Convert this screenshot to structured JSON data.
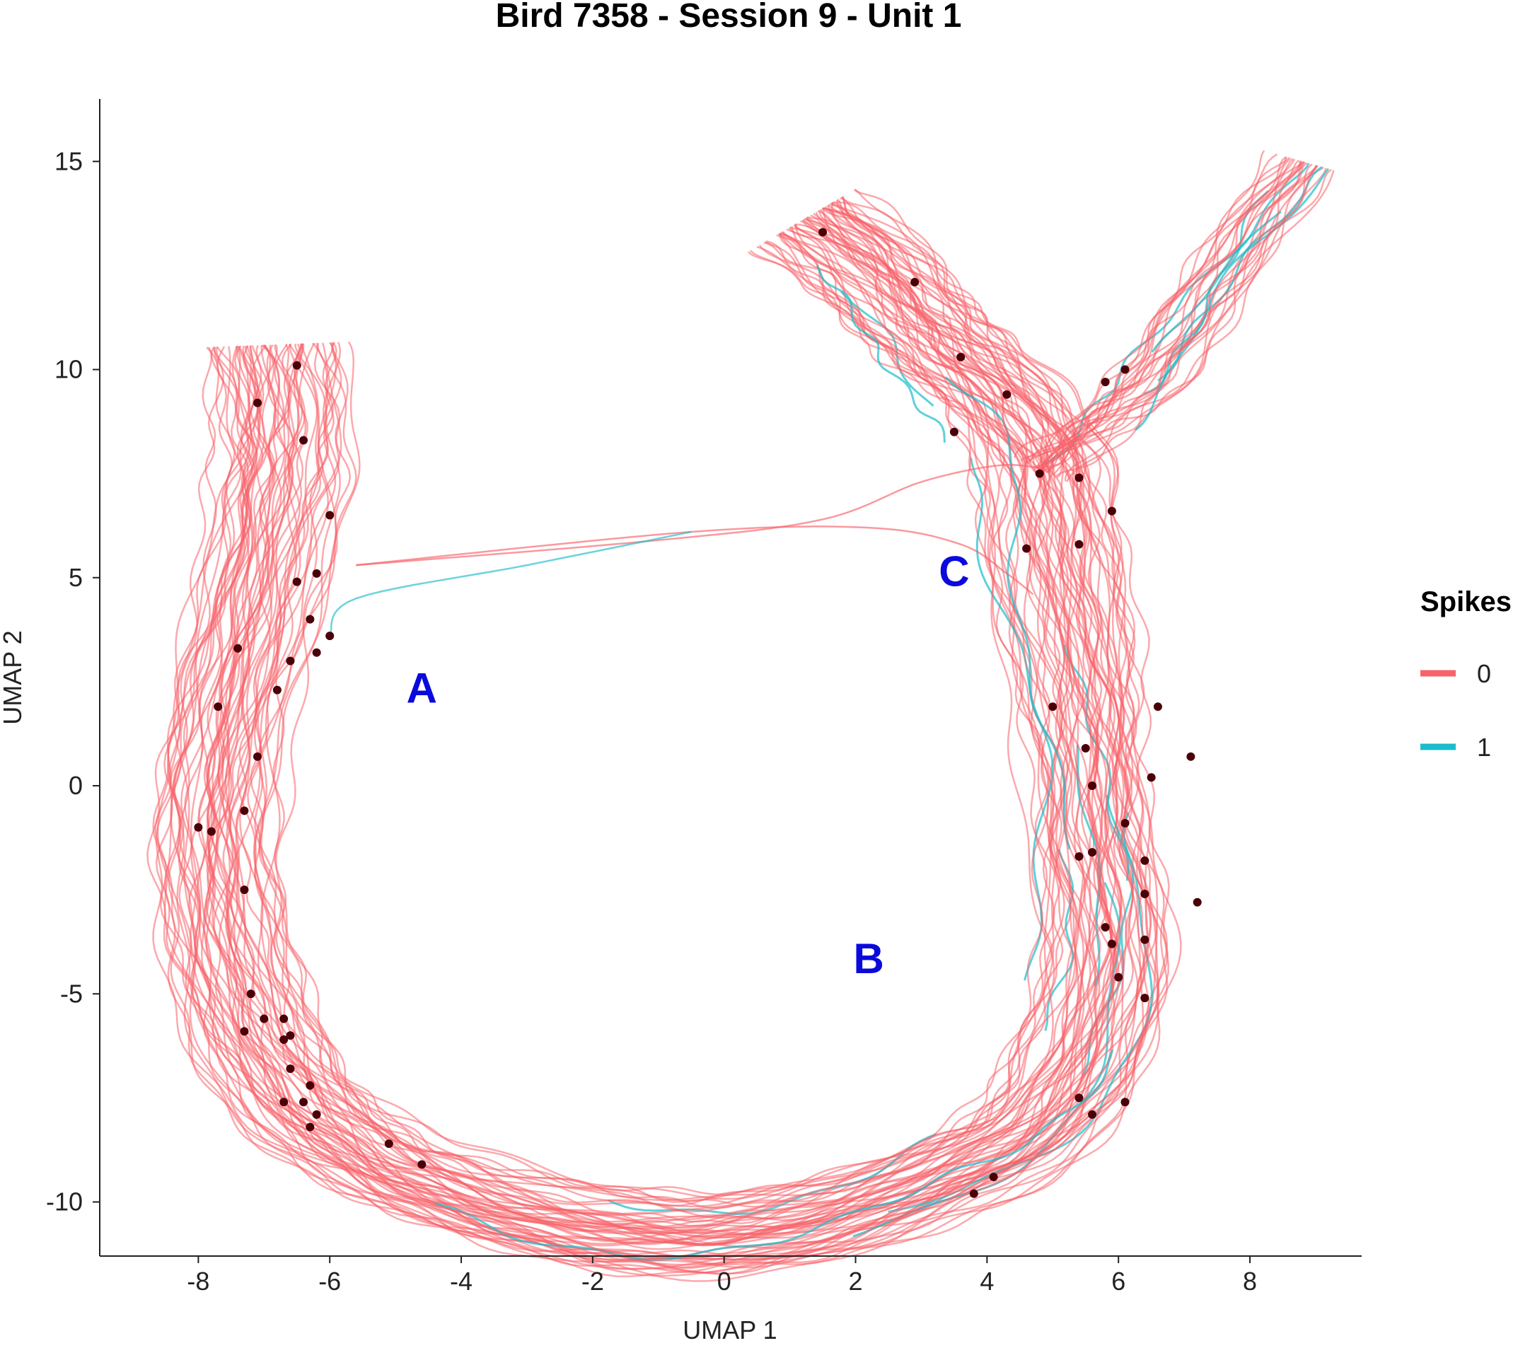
{
  "chart_data": {
    "type": "line",
    "title": "Bird 7358 - Session 9 - Unit 1",
    "xlabel": "UMAP 1",
    "ylabel": "UMAP 2",
    "xlim": [
      -9.5,
      9.7
    ],
    "ylim": [
      -11.3,
      16.5
    ],
    "xticks": [
      -8,
      -6,
      -4,
      -2,
      0,
      2,
      4,
      6,
      8
    ],
    "yticks": [
      15,
      10,
      5,
      0,
      -5,
      -10
    ],
    "grid": false,
    "legend": {
      "title": "Spikes",
      "position": "right",
      "entries": [
        {
          "label": "0",
          "color": "#F8636A"
        },
        {
          "label": "1",
          "color": "#1BBCCB"
        }
      ]
    },
    "annotations": [
      {
        "text": "A",
        "x": -4.6,
        "y": 2.0,
        "color": "#0A0ADC"
      },
      {
        "text": "B",
        "x": 2.2,
        "y": -4.5,
        "color": "#0A0ADC"
      },
      {
        "text": "C",
        "x": 3.5,
        "y": 4.8,
        "color": "#0A0ADC"
      }
    ],
    "trajectory_backbone": [
      [
        1.2,
        13.6
      ],
      [
        2.1,
        12.6
      ],
      [
        2.8,
        11.4
      ],
      [
        3.4,
        10.4
      ],
      [
        4.2,
        9.2
      ],
      [
        4.8,
        7.6
      ],
      [
        5.0,
        5.6
      ],
      [
        5.3,
        3.2
      ],
      [
        5.5,
        1.0
      ],
      [
        5.6,
        -1.5
      ],
      [
        5.8,
        -4.0
      ],
      [
        5.4,
        -6.4
      ],
      [
        4.6,
        -8.2
      ],
      [
        3.2,
        -9.4
      ],
      [
        1.4,
        -10.4
      ],
      [
        -0.5,
        -10.8
      ],
      [
        -2.4,
        -10.5
      ],
      [
        -4.2,
        -9.7
      ],
      [
        -5.5,
        -8.7
      ],
      [
        -6.5,
        -7.4
      ],
      [
        -7.2,
        -5.6
      ],
      [
        -7.6,
        -3.4
      ],
      [
        -7.7,
        -1.0
      ],
      [
        -7.5,
        1.5
      ],
      [
        -7.1,
        4.2
      ],
      [
        -6.8,
        6.8
      ],
      [
        -6.7,
        8.7
      ],
      [
        -6.8,
        10.6
      ]
    ],
    "branch_backbone": [
      [
        4.8,
        7.6
      ],
      [
        5.6,
        8.7
      ],
      [
        6.4,
        9.7
      ],
      [
        7.2,
        11.3
      ],
      [
        8.0,
        13.2
      ],
      [
        8.8,
        15.0
      ]
    ],
    "bridge_paths": [
      {
        "series": "0",
        "points": [
          [
            -5.6,
            5.3
          ],
          [
            -1.0,
            5.9
          ],
          [
            1.5,
            6.4
          ],
          [
            3.0,
            7.3
          ],
          [
            4.2,
            7.7
          ],
          [
            4.9,
            7.6
          ]
        ]
      },
      {
        "series": "0",
        "points": [
          [
            -5.6,
            5.3
          ],
          [
            -0.5,
            6.1
          ],
          [
            2.2,
            6.2
          ],
          [
            3.6,
            5.8
          ],
          [
            4.3,
            5.1
          ],
          [
            4.7,
            4.6
          ]
        ]
      },
      {
        "series": "1",
        "points": [
          [
            -6.0,
            3.6
          ],
          [
            -5.6,
            4.5
          ],
          [
            -3.0,
            5.3
          ],
          [
            -0.5,
            6.1
          ]
        ]
      }
    ],
    "spike_points": [
      [
        -6.5,
        10.1
      ],
      [
        -7.1,
        9.2
      ],
      [
        -6.4,
        8.3
      ],
      [
        -6.0,
        6.5
      ],
      [
        -6.2,
        5.1
      ],
      [
        -6.5,
        4.9
      ],
      [
        -6.3,
        4.0
      ],
      [
        -6.0,
        3.6
      ],
      [
        -6.2,
        3.2
      ],
      [
        -7.4,
        3.3
      ],
      [
        -6.6,
        3.0
      ],
      [
        -6.8,
        2.3
      ],
      [
        -7.7,
        1.9
      ],
      [
        -7.1,
        0.7
      ],
      [
        -7.3,
        -0.6
      ],
      [
        -8.0,
        -1.0
      ],
      [
        -7.8,
        -1.1
      ],
      [
        -7.3,
        -2.5
      ],
      [
        -7.2,
        -5.0
      ],
      [
        -7.0,
        -5.6
      ],
      [
        -6.7,
        -5.6
      ],
      [
        -7.3,
        -5.9
      ],
      [
        -6.6,
        -6.0
      ],
      [
        -6.7,
        -6.1
      ],
      [
        -6.6,
        -6.8
      ],
      [
        -6.3,
        -7.2
      ],
      [
        -6.7,
        -7.6
      ],
      [
        -6.4,
        -7.6
      ],
      [
        -6.2,
        -7.9
      ],
      [
        -6.3,
        -8.2
      ],
      [
        -5.1,
        -8.6
      ],
      [
        -4.6,
        -9.1
      ],
      [
        1.5,
        13.3
      ],
      [
        2.9,
        12.1
      ],
      [
        3.6,
        10.3
      ],
      [
        4.3,
        9.4
      ],
      [
        3.5,
        8.5
      ],
      [
        5.8,
        9.7
      ],
      [
        6.1,
        10.0
      ],
      [
        4.8,
        7.5
      ],
      [
        5.4,
        7.4
      ],
      [
        5.9,
        6.6
      ],
      [
        4.6,
        5.7
      ],
      [
        5.4,
        5.8
      ],
      [
        5.0,
        1.9
      ],
      [
        6.6,
        1.9
      ],
      [
        5.5,
        0.9
      ],
      [
        7.1,
        0.7
      ],
      [
        5.6,
        0.0
      ],
      [
        6.5,
        0.2
      ],
      [
        6.1,
        -0.9
      ],
      [
        5.4,
        -1.7
      ],
      [
        5.6,
        -1.6
      ],
      [
        6.4,
        -1.8
      ],
      [
        6.4,
        -2.6
      ],
      [
        7.2,
        -2.8
      ],
      [
        5.8,
        -3.4
      ],
      [
        5.9,
        -3.8
      ],
      [
        6.4,
        -3.7
      ],
      [
        6.0,
        -4.6
      ],
      [
        6.4,
        -5.1
      ],
      [
        5.4,
        -7.5
      ],
      [
        5.6,
        -7.9
      ],
      [
        6.1,
        -7.6
      ],
      [
        4.1,
        -9.4
      ],
      [
        3.8,
        -9.8
      ]
    ]
  }
}
